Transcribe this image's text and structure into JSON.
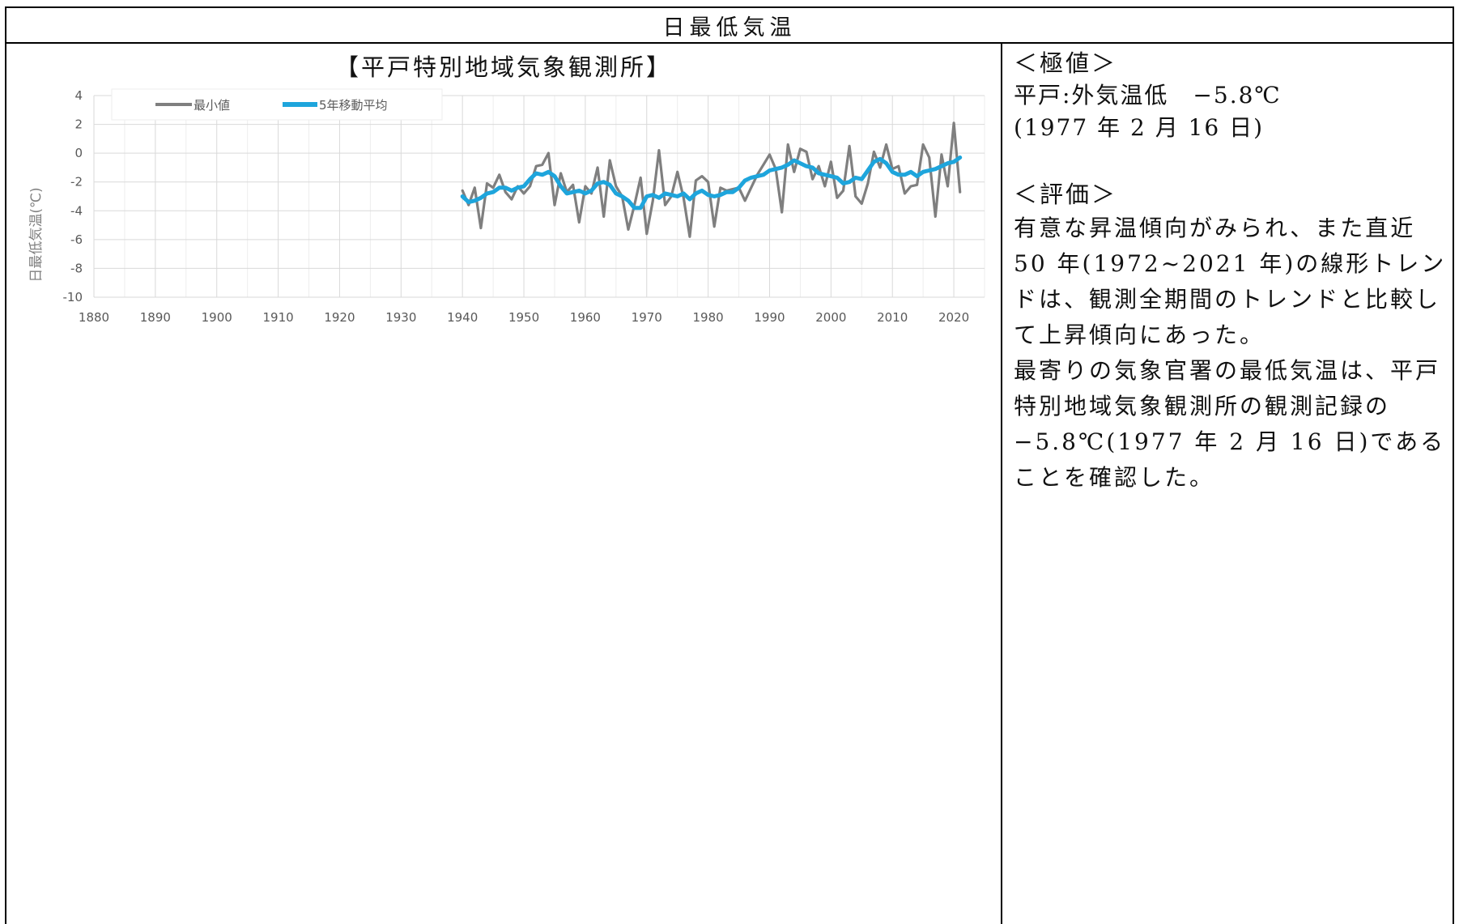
{
  "page": {
    "header_title": "日最低気温",
    "station_title": "【平戸特別地域気象観測所】"
  },
  "side": {
    "extreme_heading": "＜極値＞",
    "extreme_line1": "平戸:外気温低　−5.8℃",
    "extreme_line2": "(1977 年 2 月 16 日)",
    "eval_heading": "＜評価＞",
    "eval_paragraph1": "有意な昇温傾向がみられ、また直近 50 年(1972~2021 年)の線形トレンドは、観測全期間のトレンドと比較して上昇傾向にあった。",
    "eval_paragraph2": "最寄りの気象官署の最低気温は、平戸特別地域気象観測所の観測記録の−5.8℃(1977 年 2 月 16 日)であることを確認した。"
  },
  "chart_data": {
    "type": "line",
    "title": "",
    "ylabel": "日最低気温(℃)",
    "xlabel": "",
    "xlim": [
      1880,
      2025
    ],
    "ylim": [
      -10,
      4
    ],
    "xticks": [
      1880,
      1890,
      1900,
      1910,
      1920,
      1930,
      1940,
      1950,
      1960,
      1970,
      1980,
      1990,
      2000,
      2010,
      2020
    ],
    "yticks": [
      4,
      2,
      0,
      -2,
      -4,
      -6,
      -8,
      -10
    ],
    "grid": true,
    "legend_position": "top-left",
    "colors": {
      "min": "#7f7f7f",
      "avg": "#1ea5dc"
    },
    "x": [
      1940,
      1941,
      1942,
      1943,
      1944,
      1945,
      1946,
      1947,
      1948,
      1949,
      1950,
      1951,
      1952,
      1953,
      1954,
      1955,
      1956,
      1957,
      1958,
      1959,
      1960,
      1961,
      1962,
      1963,
      1964,
      1965,
      1966,
      1967,
      1968,
      1969,
      1970,
      1971,
      1972,
      1973,
      1974,
      1975,
      1976,
      1977,
      1978,
      1979,
      1980,
      1981,
      1982,
      1983,
      1984,
      1985,
      1986,
      1987,
      1988,
      1989,
      1990,
      1991,
      1992,
      1993,
      1994,
      1995,
      1996,
      1997,
      1998,
      1999,
      2000,
      2001,
      2002,
      2003,
      2004,
      2005,
      2006,
      2007,
      2008,
      2009,
      2010,
      2011,
      2012,
      2013,
      2014,
      2015,
      2016,
      2017,
      2018,
      2019,
      2020,
      2021
    ],
    "series": [
      {
        "name": "最小値",
        "values": [
          -2.6,
          -3.6,
          -2.4,
          -5.2,
          -2.1,
          -2.4,
          -1.5,
          -2.7,
          -3.2,
          -2.3,
          -2.8,
          -2.3,
          -0.9,
          -0.8,
          0.0,
          -3.6,
          -1.4,
          -2.7,
          -2.2,
          -4.8,
          -2.3,
          -2.8,
          -1.0,
          -4.4,
          -0.5,
          -2.3,
          -3.0,
          -5.3,
          -3.6,
          -1.7,
          -5.6,
          -3.3,
          0.2,
          -3.6,
          -3.0,
          -1.3,
          -3.1,
          -5.8,
          -1.9,
          -1.6,
          -2.0,
          -5.1,
          -2.4,
          -2.6,
          -2.5,
          -2.4,
          -3.3,
          -2.4,
          -1.5,
          -0.8,
          -0.1,
          -1.1,
          -4.1,
          0.6,
          -1.3,
          0.3,
          0.1,
          -1.8,
          -0.9,
          -2.3,
          -0.6,
          -3.1,
          -2.6,
          0.5,
          -3.0,
          -3.5,
          -2.1,
          0.1,
          -1.0,
          0.6,
          -1.1,
          -0.9,
          -2.8,
          -2.3,
          -2.2,
          0.6,
          -0.3,
          -4.4,
          -0.1,
          -2.3,
          2.1,
          -2.7
        ]
      },
      {
        "name": "5年移動平均",
        "values": [
          -3.0,
          -3.4,
          -3.3,
          -3.1,
          -2.8,
          -2.7,
          -2.4,
          -2.4,
          -2.6,
          -2.4,
          -2.3,
          -1.8,
          -1.4,
          -1.5,
          -1.3,
          -1.6,
          -2.3,
          -2.8,
          -2.7,
          -2.6,
          -2.8,
          -2.6,
          -2.1,
          -2.0,
          -2.2,
          -2.8,
          -3.0,
          -3.3,
          -3.8,
          -3.8,
          -3.0,
          -2.9,
          -3.1,
          -2.8,
          -2.9,
          -3.0,
          -2.8,
          -3.2,
          -2.8,
          -2.6,
          -2.9,
          -3.0,
          -2.9,
          -2.7,
          -2.7,
          -2.4,
          -1.9,
          -1.7,
          -1.6,
          -1.5,
          -1.2,
          -1.1,
          -1.0,
          -0.8,
          -0.5,
          -0.7,
          -0.9,
          -1.0,
          -1.4,
          -1.5,
          -1.6,
          -1.7,
          -2.1,
          -2.0,
          -1.7,
          -1.8,
          -1.2,
          -0.6,
          -0.4,
          -0.7,
          -1.3,
          -1.5,
          -1.5,
          -1.3,
          -1.6,
          -1.3,
          -1.2,
          -1.1,
          -0.9,
          -0.7,
          -0.6,
          -0.3
        ]
      }
    ]
  }
}
